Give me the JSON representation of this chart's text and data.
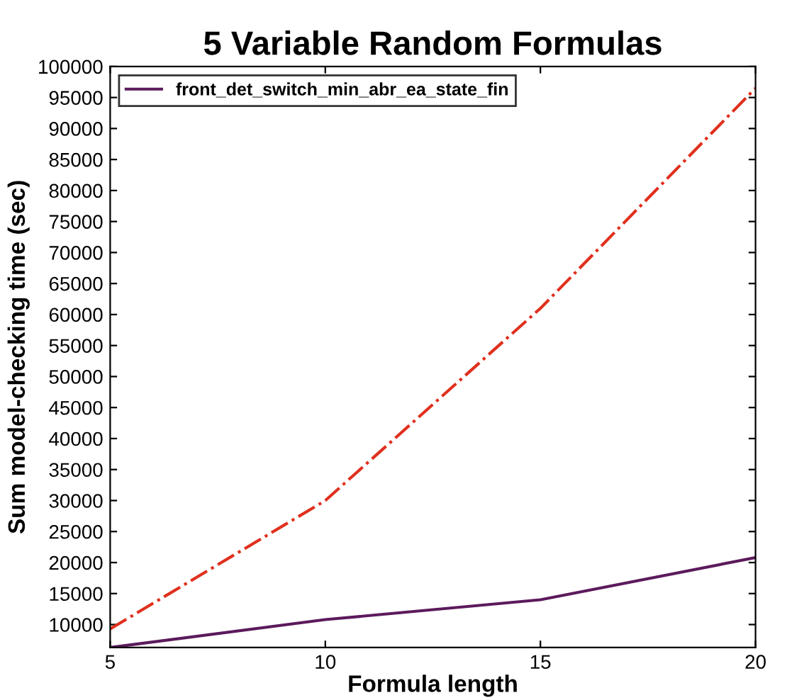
{
  "chart_data": {
    "type": "line",
    "title": "5 Variable Random Formulas",
    "xlabel": "Formula length",
    "ylabel": "Sum model-checking time (sec)",
    "x": [
      5,
      10,
      15,
      20
    ],
    "series": [
      {
        "color": "#e0301e",
        "line_style": "dashdot",
        "values": [
          9300,
          30000,
          61000,
          96500
        ]
      },
      {
        "name": "front_det_switch_min_abr_ea_state_fin",
        "color": "#5c1a5c",
        "line_style": "solid",
        "values": [
          6300,
          10800,
          14000,
          20800
        ]
      }
    ],
    "xlim": [
      5,
      20
    ],
    "xticks": [
      5,
      10,
      15,
      20
    ],
    "ylim": [
      6300,
      100000
    ],
    "yticks": [
      10000,
      15000,
      20000,
      25000,
      30000,
      35000,
      40000,
      45000,
      50000,
      55000,
      60000,
      65000,
      70000,
      75000,
      80000,
      85000,
      90000,
      95000,
      100000
    ],
    "grid": false,
    "legend": "top left",
    "marker": "none"
  }
}
